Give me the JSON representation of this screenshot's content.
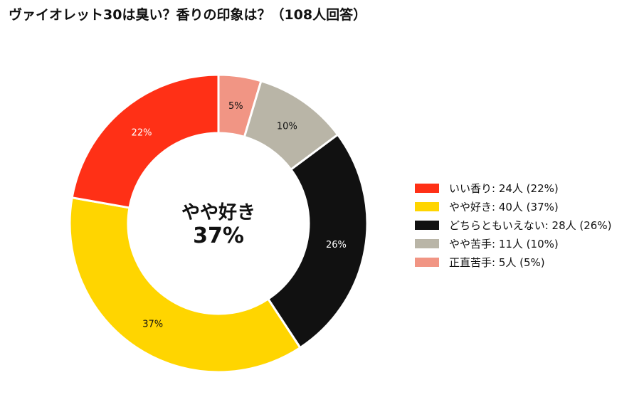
{
  "title": "ヴァイオレット30は臭い？香りの印象は？（108人回答）",
  "chart_data": {
    "type": "pie",
    "donut": true,
    "title": "ヴァイオレット30は臭い？香りの印象は？（108人回答）",
    "center_label": "やや好き",
    "center_value": "37%",
    "start": "top",
    "direction": "clockwise",
    "legend_position": "right",
    "slices": [
      {
        "label": "正直苦手",
        "value": 5,
        "percent_label": "5%",
        "legend": "正直苦手:  5人 (5%)",
        "color": "#F19584"
      },
      {
        "label": "やや苦手",
        "value": 11,
        "percent_label": "10%",
        "legend": "やや苦手:  11人 (10%)",
        "color": "#B9B5A7"
      },
      {
        "label": "どちらともいえない",
        "value": 28,
        "percent_label": "26%",
        "legend": "どちらともいえない:  28人 (26%)",
        "color": "#111111"
      },
      {
        "label": "やや好き",
        "value": 40,
        "percent_label": "37%",
        "legend": "やや好き:  40人 (37%)",
        "color": "#FFD500"
      },
      {
        "label": "いい香り",
        "value": 24,
        "percent_label": "22%",
        "legend": "いい香り:  24人 (22%)",
        "color": "#FF3016"
      }
    ],
    "legend_order": [
      "いい香り",
      "やや好き",
      "どちらともいえない",
      "やや苦手",
      "正直苦手"
    ]
  }
}
